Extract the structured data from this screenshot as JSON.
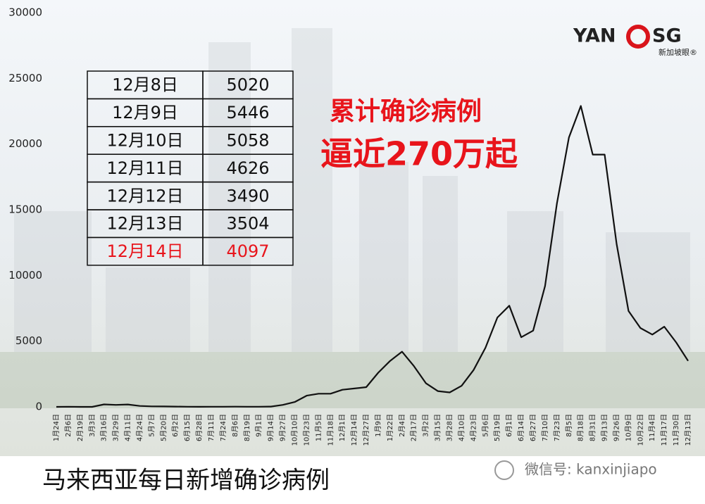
{
  "chart_data": {
    "type": "line",
    "annotations": [
      "累计确诊病例",
      "逼近270万起"
    ],
    "categories": [
      "1月24日",
      "2月6日",
      "2月19日",
      "3月3日",
      "3月16日",
      "3月29日",
      "4月11日",
      "4月24日",
      "5月7日",
      "5月20日",
      "6月2日",
      "6月15日",
      "6月28日",
      "7月11日",
      "7月24日",
      "8月6日",
      "8月19日",
      "9月1日",
      "9月14日",
      "9月27日",
      "10月10日",
      "10月23日",
      "11月5日",
      "11月18日",
      "12月1日",
      "12月14日",
      "12月27日",
      "1月9日",
      "1月22日",
      "2月4日",
      "2月17日",
      "3月2日",
      "3月15日",
      "3月28日",
      "4月10日",
      "4月23日",
      "5月6日",
      "5月19日",
      "6月1日",
      "6月14日",
      "6月27日",
      "7月10日",
      "7月23日",
      "8月5日",
      "8月18日",
      "8月31日",
      "9月13日",
      "9月26日",
      "10月9日",
      "10月22日",
      "11月4日",
      "11月17日",
      "11月30日",
      "12月13日"
    ],
    "values": [
      0,
      10,
      0,
      0,
      190,
      150,
      180,
      70,
      40,
      30,
      20,
      10,
      5,
      10,
      10,
      15,
      10,
      10,
      20,
      150,
      370,
      850,
      1000,
      1000,
      1300,
      1400,
      1500,
      2600,
      3500,
      4200,
      3100,
      1800,
      1200,
      1100,
      1600,
      2800,
      4500,
      6800,
      7700,
      5300,
      5800,
      9200,
      15500,
      20500,
      22900,
      19200,
      19200,
      12400,
      7300,
      6000,
      5500,
      6100,
      4900,
      3500
    ],
    "color": "#111111",
    "ylim": [
      0,
      30000
    ],
    "yticks": [
      0,
      5000,
      10000,
      15000,
      20000,
      25000,
      30000
    ],
    "grid": false
  },
  "table": {
    "rows": [
      [
        "12月8日",
        5020
      ],
      [
        "12月9日",
        5446
      ],
      [
        "12月10日",
        5058
      ],
      [
        "12月11日",
        4626
      ],
      [
        "12月12日",
        3490
      ],
      [
        "12月13日",
        3504
      ],
      [
        "12月14日",
        4097
      ]
    ]
  },
  "logo": {
    "left": "YAN",
    "right": "SG",
    "sub": "新加坡眼®"
  },
  "footer": {
    "caption": "马来西亚每日新增确诊病例",
    "wechat": "微信号: kanxinjiapo"
  }
}
